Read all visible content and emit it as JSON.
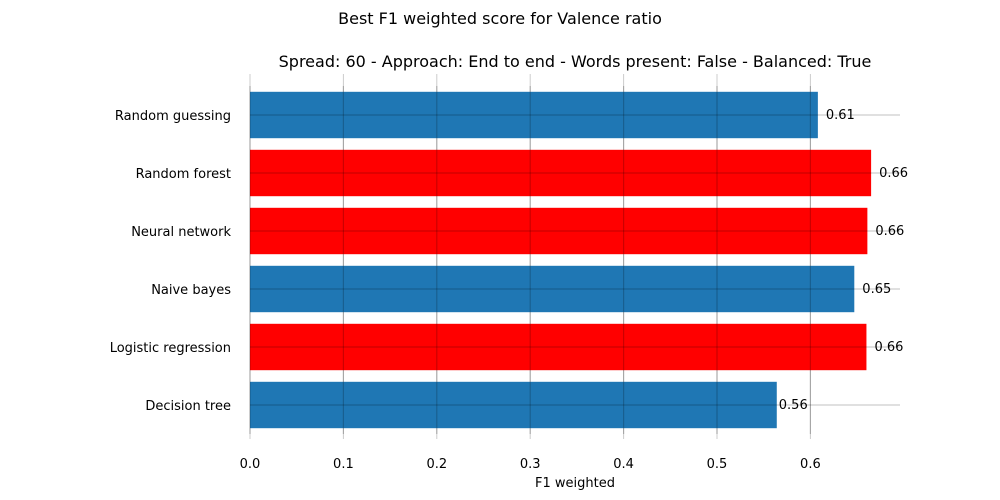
{
  "chart_data": {
    "type": "bar",
    "orientation": "horizontal",
    "suptitle": "Best F1 weighted score for Valence ratio",
    "title": "Spread: 60 - Approach: End to end - Words present: False - Balanced: True",
    "xlabel": "F1 weighted",
    "ylabel": "",
    "xlim": [
      0,
      0.7
    ],
    "xticks": [
      "0.0",
      "0.1",
      "0.2",
      "0.3",
      "0.4",
      "0.5",
      "0.6"
    ],
    "grid": true,
    "categories": [
      "Random guessing",
      "Random forest",
      "Neural network",
      "Naive bayes",
      "Logistic regression",
      "Decision tree"
    ],
    "values": [
      0.608,
      0.665,
      0.661,
      0.647,
      0.66,
      0.564
    ],
    "value_labels": [
      "0.61",
      "0.66",
      "0.66",
      "0.65",
      "0.66",
      "0.56"
    ],
    "bar_colors": [
      "#1f77b4",
      "#ff0000",
      "#ff0000",
      "#1f77b4",
      "#ff0000",
      "#1f77b4"
    ]
  }
}
